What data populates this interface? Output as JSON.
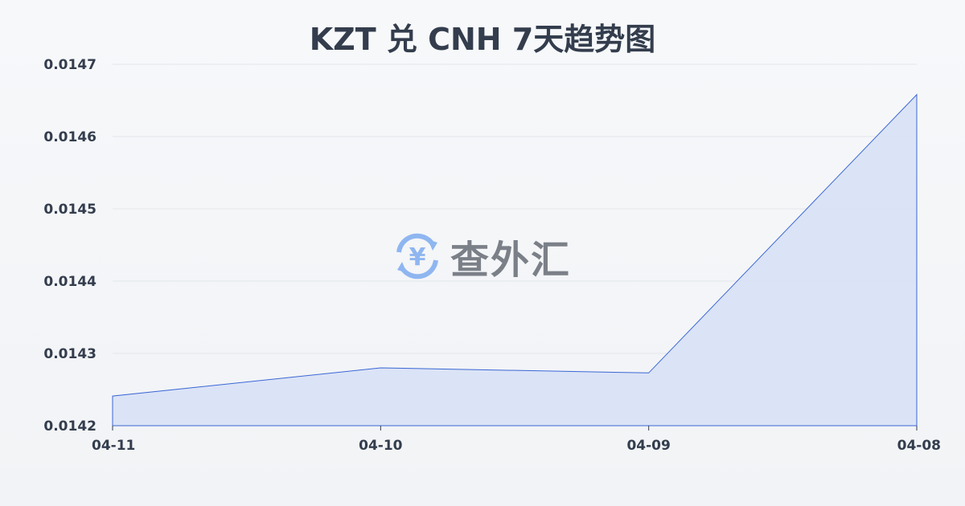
{
  "chart_data": {
    "type": "area",
    "title": "KZT 兑 CNH 7天趋势图",
    "categories": [
      "04-11",
      "04-10",
      "04-09",
      "04-08"
    ],
    "values": [
      0.014241,
      0.01428,
      0.014273,
      0.014658
    ],
    "ylim": [
      0.0142,
      0.0147
    ],
    "yticks": [
      "0.0142",
      "0.0143",
      "0.0144",
      "0.0145",
      "0.0146",
      "0.0147"
    ],
    "grid": true,
    "line_color": "#3a67d4",
    "fill_color": "#d8e1f5"
  },
  "watermark": {
    "text": "查外汇",
    "icon": "yen-exchange-icon"
  }
}
